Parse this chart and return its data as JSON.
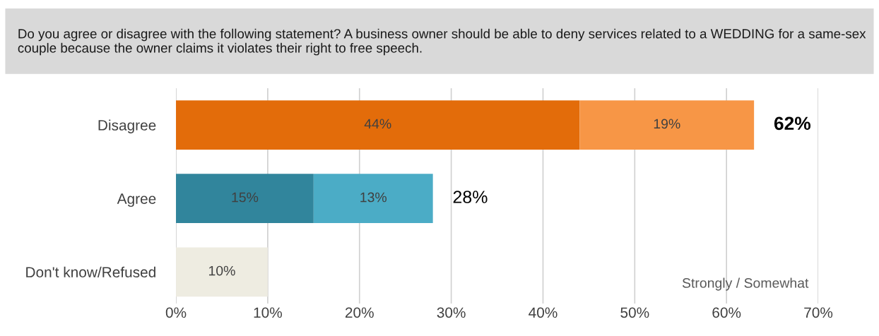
{
  "chart_data": {
    "type": "bar",
    "orientation": "horizontal",
    "stacked": true,
    "title": "Do you agree or disagree with the following statement? A business owner should be able to deny services related to a WEDDING for a same-sex couple because the owner claims it violates their right to free speech.",
    "categories": [
      "Disagree",
      "Agree",
      "Don't know/Refused"
    ],
    "series": [
      {
        "colors": [
          "#e36c0a",
          "#31859c",
          "#eeece1"
        ],
        "values": [
          44,
          15,
          10
        ],
        "value_labels": [
          "44%",
          "15%",
          "10%"
        ]
      },
      {
        "colors": [
          "#f79646",
          "#4bacc6",
          null
        ],
        "values": [
          19,
          13,
          null
        ],
        "value_labels": [
          "19%",
          "13%",
          null
        ]
      }
    ],
    "totals": [
      "62%",
      "28%",
      null
    ],
    "xlim": [
      0,
      70
    ],
    "xticks": [
      {
        "value": 0,
        "label": "0%"
      },
      {
        "value": 10,
        "label": "10%"
      },
      {
        "value": 20,
        "label": "20%"
      },
      {
        "value": 30,
        "label": "30%"
      },
      {
        "value": 40,
        "label": "40%"
      },
      {
        "value": 50,
        "label": "50%"
      },
      {
        "value": 60,
        "label": "60%"
      },
      {
        "value": 70,
        "label": "70%"
      }
    ],
    "grid": "x",
    "annotations": [
      "Strongly / Somewhat"
    ]
  }
}
